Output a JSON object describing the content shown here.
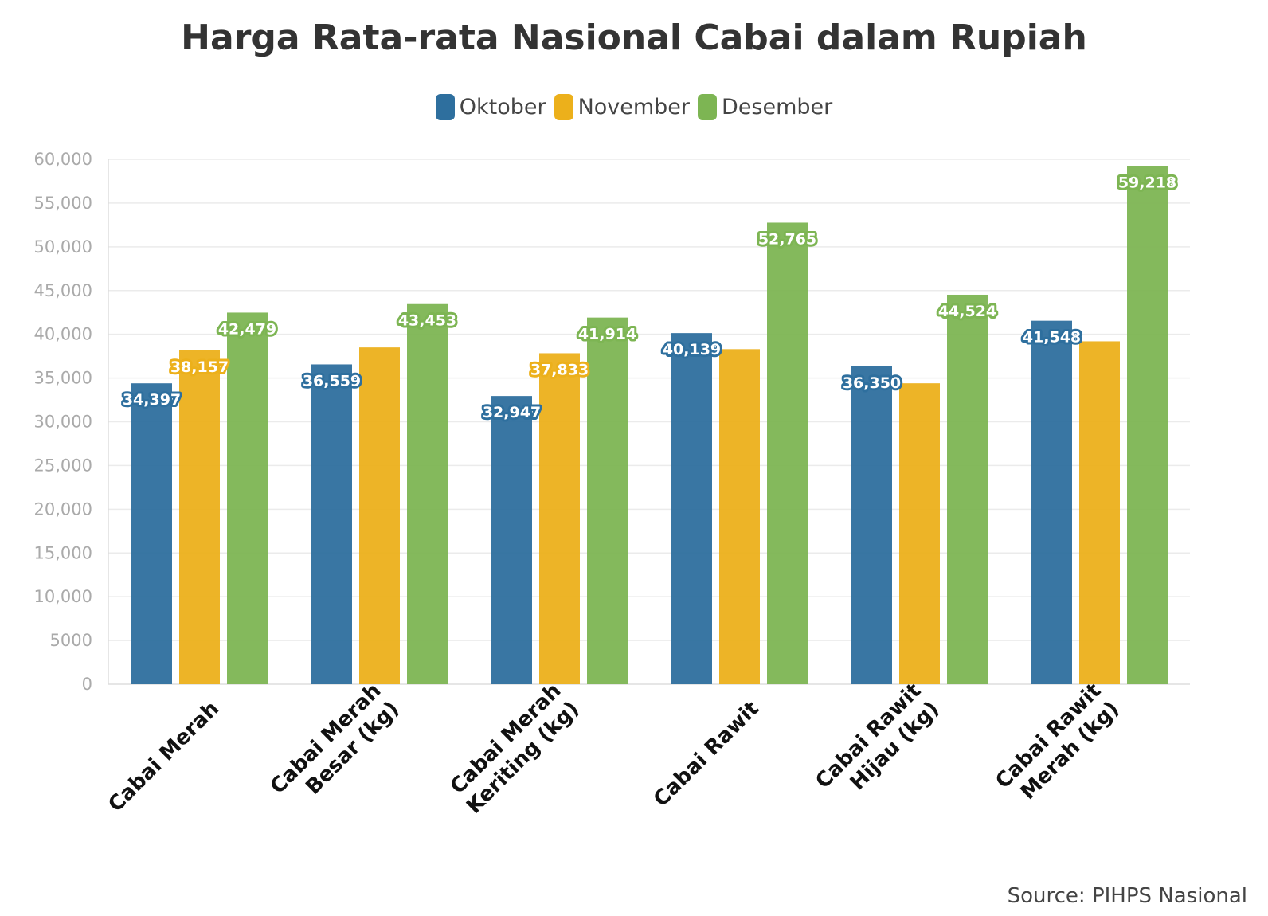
{
  "chart_data": {
    "type": "bar",
    "title": "Harga Rata-rata Nasional Cabai dalam Rupiah",
    "xlabel": "",
    "ylabel": "",
    "ylim": [
      0,
      60000
    ],
    "yticks": [
      {
        "value": 0,
        "label": "0"
      },
      {
        "value": 5000,
        "label": "5000"
      },
      {
        "value": 10000,
        "label": "10,000"
      },
      {
        "value": 15000,
        "label": "15,000"
      },
      {
        "value": 20000,
        "label": "20,000"
      },
      {
        "value": 25000,
        "label": "25,000"
      },
      {
        "value": 30000,
        "label": "30,000"
      },
      {
        "value": 35000,
        "label": "35,000"
      },
      {
        "value": 40000,
        "label": "40,000"
      },
      {
        "value": 45000,
        "label": "45,000"
      },
      {
        "value": 50000,
        "label": "50,000"
      },
      {
        "value": 55000,
        "label": "55,000"
      },
      {
        "value": 60000,
        "label": "60,000"
      }
    ],
    "grid": true,
    "legend_position": "top-center",
    "categories": [
      [
        "Cabai Merah"
      ],
      [
        "Cabai Merah",
        "Besar (kg)"
      ],
      [
        "Cabai Merah",
        "Keriting (kg)"
      ],
      [
        "Cabai Rawit"
      ],
      [
        "Cabai Rawit",
        "Hijau (kg)"
      ],
      [
        "Cabai Rawit",
        "Merah (kg)"
      ]
    ],
    "series": [
      {
        "name": "Oktober",
        "color": "#2e6f9e",
        "values": [
          34397,
          36559,
          32947,
          40139,
          36350,
          41548
        ],
        "labels": [
          "34,397",
          "36,559",
          "32,947",
          "40,139",
          "36,350",
          "41,548"
        ]
      },
      {
        "name": "November",
        "color": "#ecb01b",
        "values": [
          38157,
          38500,
          37833,
          38300,
          34400,
          39200
        ],
        "labels": [
          "38,157",
          "",
          "37,833",
          "",
          "",
          ""
        ]
      },
      {
        "name": "Desember",
        "color": "#7db553",
        "values": [
          42479,
          43453,
          41914,
          52765,
          44524,
          59218
        ],
        "labels": [
          "42,479",
          "43,453",
          "41,914",
          "52,765",
          "44,524",
          "59,218"
        ]
      }
    ],
    "source": "Source: PIHPS Nasional"
  }
}
